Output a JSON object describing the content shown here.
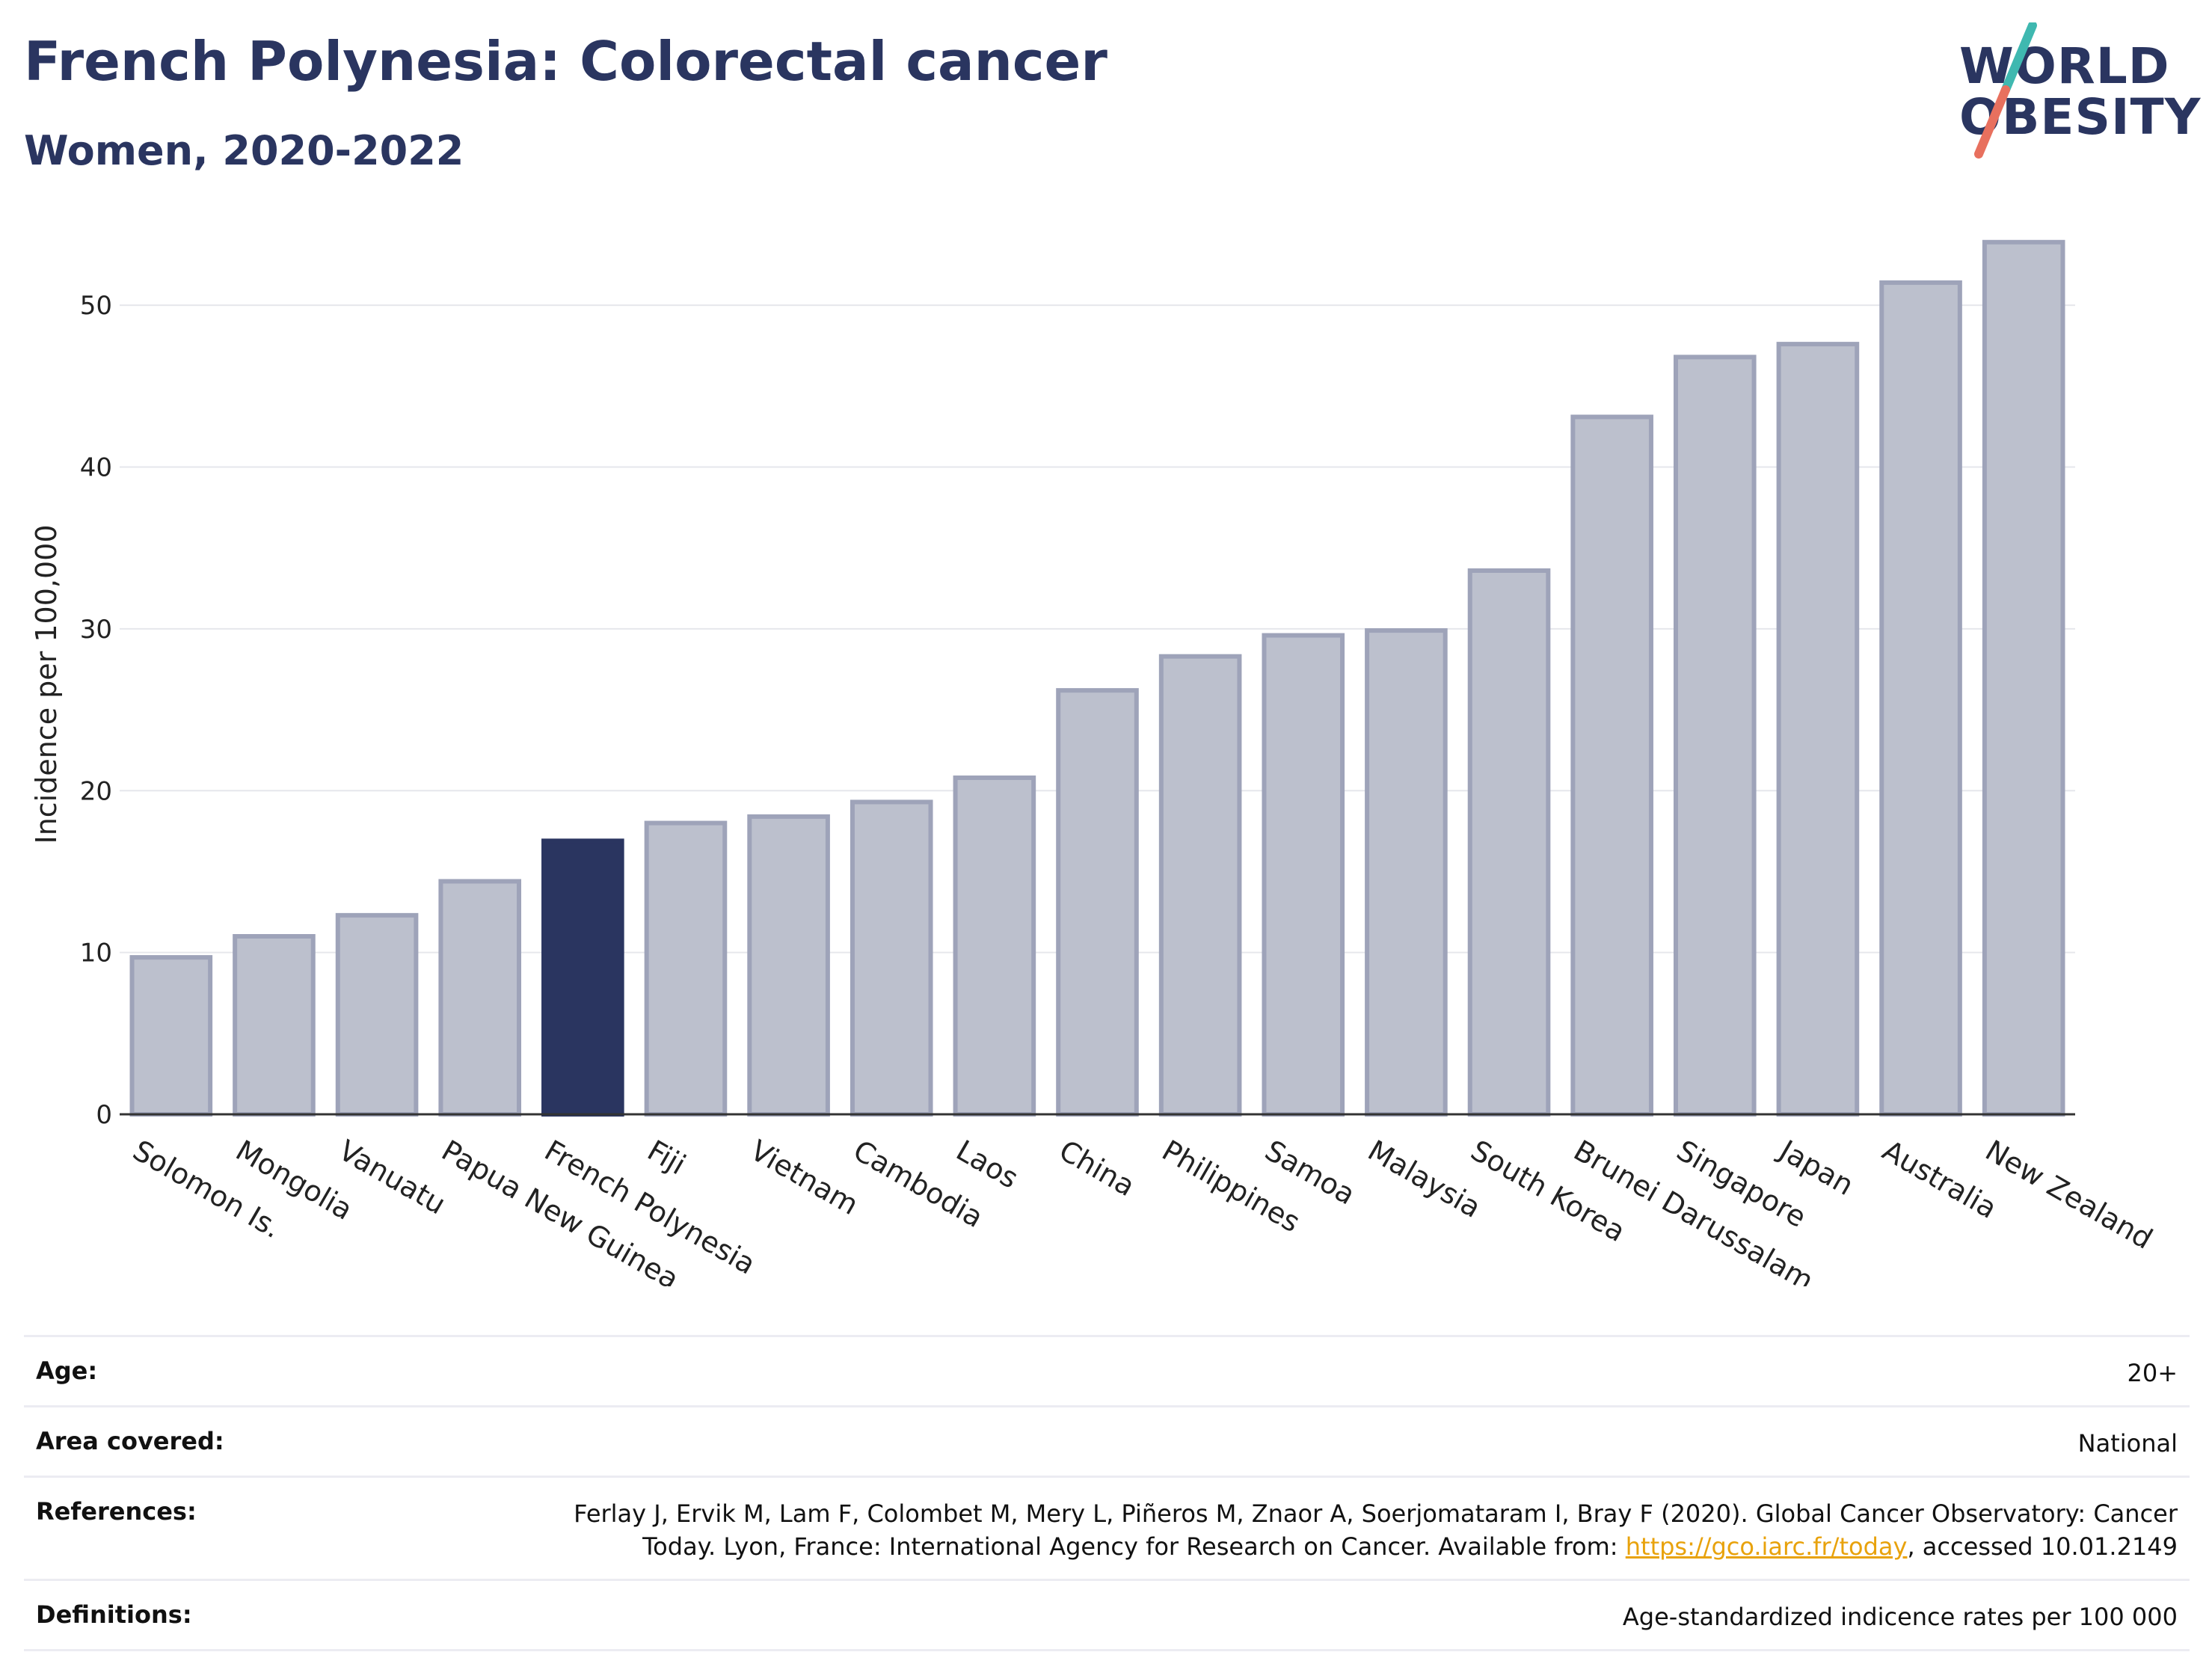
{
  "header": {
    "title": "French Polynesia: Colorectal cancer",
    "subtitle": "Women, 2020-2022",
    "logo_line1": "WORLD",
    "logo_line2": "OBESITY"
  },
  "chart_data": {
    "type": "bar",
    "title": "French Polynesia: Colorectal cancer",
    "subtitle": "Women, 2020-2022",
    "ylabel": "Incidence per 100,000",
    "xlabel": "",
    "ylim": [
      0,
      55
    ],
    "yticks": [
      0,
      10,
      20,
      30,
      40,
      50
    ],
    "grid": true,
    "categories": [
      "Solomon Is.",
      "Mongolia",
      "Vanuatu",
      "Papua New Guinea",
      "French Polynesia",
      "Fiji",
      "Vietnam",
      "Cambodia",
      "Laos",
      "China",
      "Philippines",
      "Samoa",
      "Malaysia",
      "South Korea",
      "Brunei Darussalam",
      "Singapore",
      "Japan",
      "Australia",
      "New Zealand"
    ],
    "values": [
      9.7,
      11.0,
      12.3,
      14.4,
      16.9,
      18.0,
      18.4,
      19.3,
      20.8,
      26.2,
      28.3,
      29.6,
      29.9,
      33.6,
      43.1,
      46.8,
      47.6,
      51.4,
      53.9
    ],
    "highlight": "French Polynesia",
    "colors": {
      "bar": "#bcc0cd",
      "bar_border": "#9ea3b9",
      "highlight": "#2a3560"
    }
  },
  "meta": [
    {
      "key": "Age:",
      "value": "20+"
    },
    {
      "key": "Area covered:",
      "value": "National"
    },
    {
      "key": "References:",
      "value_pre": "Ferlay J, Ervik M, Lam F, Colombet M, Mery L, Piñeros M, Znaor A, Soerjomataram I, Bray F (2020). Global Cancer Observatory: Cancer Today. Lyon, France: International Agency for Research on Cancer. Available from: ",
      "link": "https://gco.iarc.fr/today",
      "value_post": ", accessed 10.01.2149"
    },
    {
      "key": "Definitions:",
      "value": "Age-standardized indicence rates per 100 000"
    }
  ]
}
